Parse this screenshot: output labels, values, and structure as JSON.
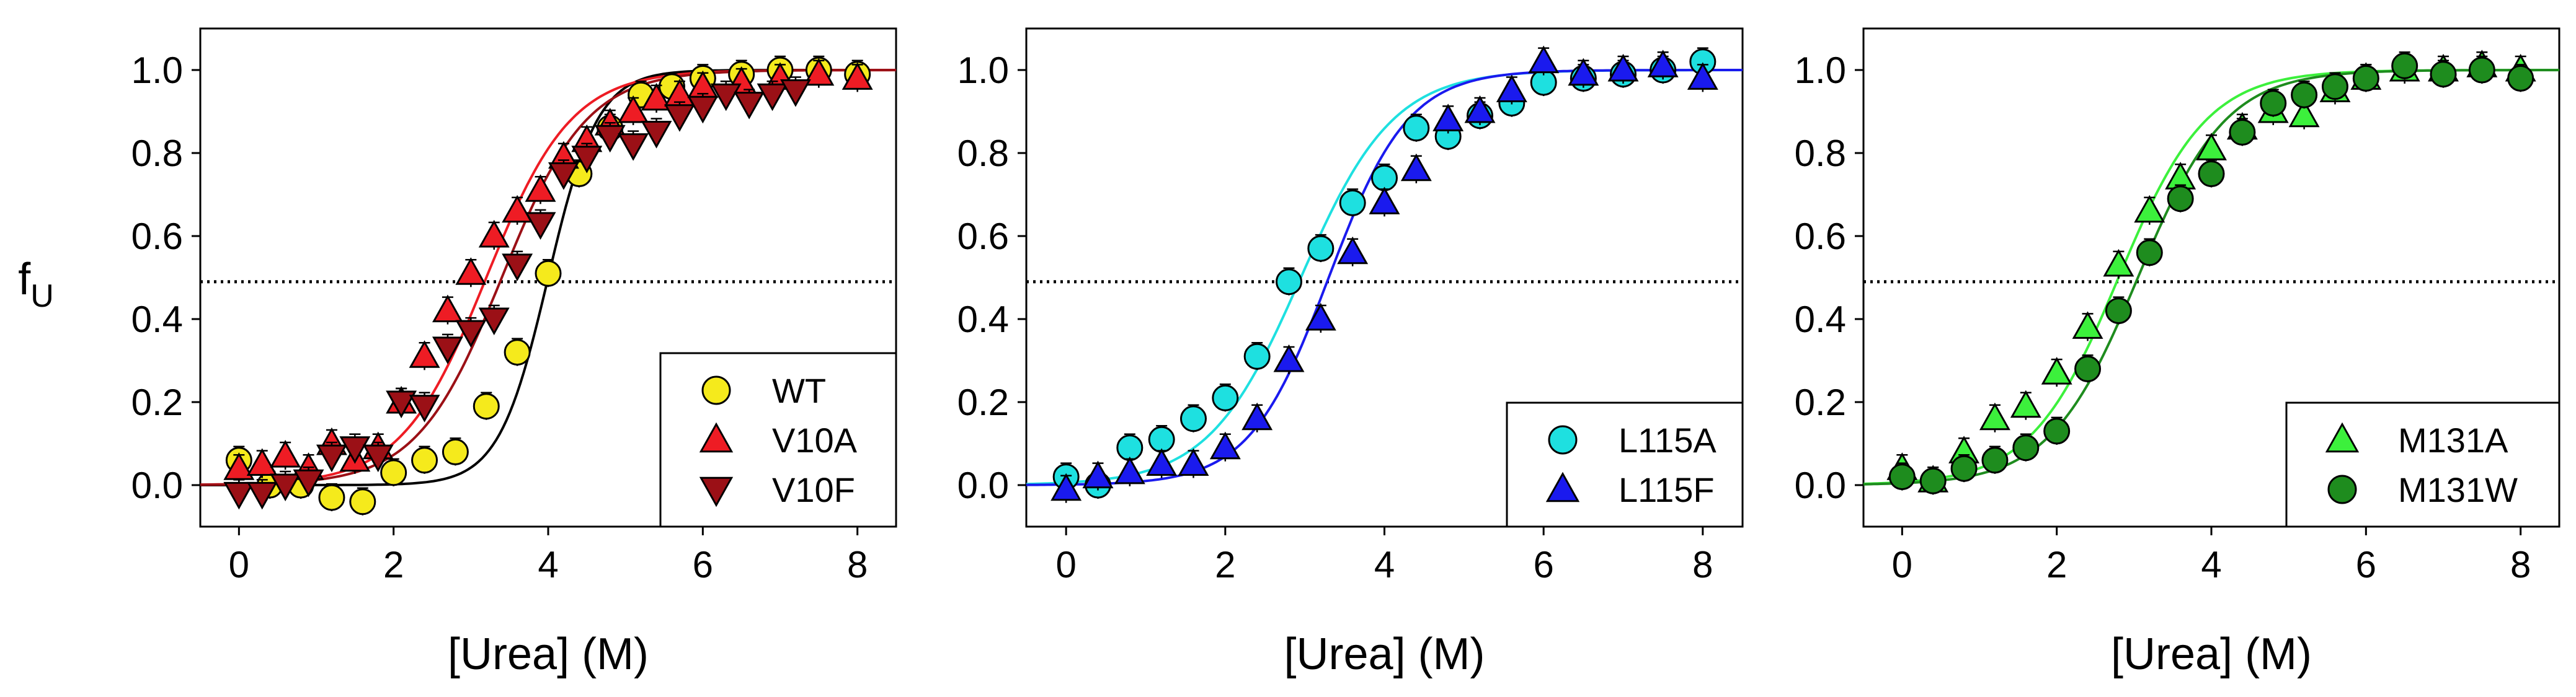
{
  "figure": {
    "ylabel_main": "f",
    "ylabel_sub": "U",
    "reference_line_y": 0.49
  },
  "chart_data": [
    {
      "type": "scatter",
      "panel": "left",
      "xlabel": "[Urea] (M)",
      "ylabel": "fU",
      "xlim": [
        -0.5,
        8.5
      ],
      "ylim": [
        -0.1,
        1.1
      ],
      "xticks": [
        0,
        2,
        4,
        6,
        8
      ],
      "yticks": [
        0.0,
        0.2,
        0.4,
        0.6,
        0.8,
        1.0
      ],
      "legend_position": "bottom-right",
      "series": [
        {
          "name": "WT",
          "marker": "circle",
          "color": "#f5ea1c",
          "curve_color": "#000000",
          "midpoint": 4.0,
          "slope": 0.32,
          "x": [
            0,
            0.4,
            0.8,
            1.2,
            1.6,
            2.0,
            2.4,
            2.8,
            3.2,
            3.6,
            4.0,
            4.4,
            4.8,
            5.2,
            5.6,
            6.0,
            6.5,
            7.0,
            7.5,
            8.0
          ],
          "y": [
            0.06,
            0.0,
            0.0,
            -0.03,
            -0.04,
            0.03,
            0.06,
            0.08,
            0.19,
            0.32,
            0.51,
            0.75,
            0.86,
            0.94,
            0.96,
            0.98,
            0.99,
            1.0,
            1.0,
            0.99
          ]
        },
        {
          "name": "V10A",
          "marker": "triangle-up",
          "color": "#ee1c24",
          "curve_color": "#ee1c24",
          "midpoint": 3.2,
          "slope": 0.55,
          "x": [
            0,
            0.3,
            0.6,
            0.9,
            1.2,
            1.5,
            1.8,
            2.1,
            2.4,
            2.7,
            3.0,
            3.3,
            3.6,
            3.9,
            4.2,
            4.5,
            4.8,
            5.1,
            5.4,
            5.7,
            6.0,
            6.5,
            7.0,
            7.5,
            8.0
          ],
          "y": [
            0.04,
            0.05,
            0.07,
            0.04,
            0.1,
            0.06,
            0.09,
            0.2,
            0.31,
            0.42,
            0.51,
            0.6,
            0.66,
            0.71,
            0.79,
            0.83,
            0.87,
            0.9,
            0.93,
            0.94,
            0.96,
            0.97,
            0.98,
            0.99,
            0.98
          ]
        },
        {
          "name": "V10F",
          "marker": "triangle-down",
          "color": "#9b1016",
          "curve_color": "#9b1016",
          "midpoint": 3.4,
          "slope": 0.55,
          "x": [
            0,
            0.3,
            0.6,
            0.9,
            1.2,
            1.5,
            1.8,
            2.1,
            2.4,
            2.7,
            3.0,
            3.3,
            3.6,
            3.9,
            4.2,
            4.5,
            4.8,
            5.1,
            5.4,
            5.7,
            6.0,
            6.3,
            6.6,
            6.9,
            7.2
          ],
          "y": [
            -0.02,
            -0.02,
            0.0,
            0.01,
            0.07,
            0.09,
            0.07,
            0.2,
            0.19,
            0.33,
            0.37,
            0.4,
            0.53,
            0.63,
            0.75,
            0.79,
            0.84,
            0.82,
            0.85,
            0.89,
            0.91,
            0.94,
            0.92,
            0.94,
            0.95
          ]
        }
      ]
    },
    {
      "type": "scatter",
      "panel": "middle",
      "xlabel": "[Urea] (M)",
      "ylabel": "fU",
      "xlim": [
        -0.5,
        8.5
      ],
      "ylim": [
        -0.1,
        1.1
      ],
      "xticks": [
        0,
        2,
        4,
        6,
        8
      ],
      "yticks": [
        0.0,
        0.2,
        0.4,
        0.6,
        0.8,
        1.0
      ],
      "legend_position": "bottom-right",
      "series": [
        {
          "name": "L115A",
          "marker": "circle",
          "color": "#1ee0e0",
          "curve_color": "#1ee0e0",
          "midpoint": 2.95,
          "slope": 0.58,
          "x": [
            0,
            0.4,
            0.8,
            1.2,
            1.6,
            2.0,
            2.4,
            2.8,
            3.2,
            3.6,
            4.0,
            4.4,
            4.8,
            5.2,
            5.6,
            6.0,
            6.5,
            7.0,
            7.5,
            8.0
          ],
          "y": [
            0.02,
            0.0,
            0.09,
            0.11,
            0.16,
            0.21,
            0.31,
            0.49,
            0.57,
            0.68,
            0.74,
            0.86,
            0.84,
            0.89,
            0.92,
            0.97,
            0.98,
            0.99,
            1.0,
            1.02
          ]
        },
        {
          "name": "L115F",
          "marker": "triangle-up",
          "color": "#1a1aee",
          "curve_color": "#1a1aee",
          "midpoint": 3.3,
          "slope": 0.5,
          "x": [
            0,
            0.4,
            0.8,
            1.2,
            1.6,
            2.0,
            2.4,
            2.8,
            3.2,
            3.6,
            4.0,
            4.4,
            4.8,
            5.2,
            5.6,
            6.0,
            6.5,
            7.0,
            7.5,
            8.0
          ],
          "y": [
            -0.01,
            0.02,
            0.03,
            0.05,
            0.05,
            0.09,
            0.16,
            0.3,
            0.4,
            0.56,
            0.68,
            0.76,
            0.88,
            0.9,
            0.95,
            1.02,
            0.99,
            1.0,
            1.01,
            0.98
          ]
        }
      ]
    },
    {
      "type": "scatter",
      "panel": "right",
      "xlabel": "[Urea] (M)",
      "ylabel": "fU",
      "xlim": [
        -0.5,
        8.5
      ],
      "ylim": [
        -0.1,
        1.1
      ],
      "xticks": [
        0,
        2,
        4,
        6,
        8
      ],
      "yticks": [
        0.0,
        0.2,
        0.4,
        0.6,
        0.8,
        1.0
      ],
      "legend_position": "bottom-right",
      "series": [
        {
          "name": "M131A",
          "marker": "triangle-up",
          "color": "#3cf03c",
          "curve_color": "#3cf03c",
          "midpoint": 2.8,
          "slope": 0.57,
          "x": [
            0,
            0.4,
            0.8,
            1.2,
            1.6,
            2.0,
            2.4,
            2.8,
            3.2,
            3.6,
            4.0,
            4.4,
            4.8,
            5.2,
            5.6,
            6.0,
            6.5,
            7.0,
            7.5,
            8.0
          ],
          "y": [
            0.04,
            0.01,
            0.08,
            0.16,
            0.19,
            0.27,
            0.38,
            0.53,
            0.66,
            0.74,
            0.81,
            0.86,
            0.9,
            0.89,
            0.95,
            0.98,
            1.0,
            1.0,
            1.01,
            1.0
          ]
        },
        {
          "name": "M131W",
          "marker": "circle",
          "color": "#1e8c1e",
          "curve_color": "#1e8c1e",
          "midpoint": 3.05,
          "slope": 0.57,
          "x": [
            0,
            0.4,
            0.8,
            1.2,
            1.6,
            2.0,
            2.4,
            2.8,
            3.2,
            3.6,
            4.0,
            4.4,
            4.8,
            5.2,
            5.6,
            6.0,
            6.5,
            7.0,
            7.5,
            8.0
          ],
          "y": [
            0.02,
            0.01,
            0.04,
            0.06,
            0.09,
            0.13,
            0.28,
            0.42,
            0.56,
            0.69,
            0.75,
            0.85,
            0.92,
            0.94,
            0.96,
            0.98,
            1.01,
            0.99,
            1.0,
            0.98
          ]
        }
      ]
    }
  ]
}
